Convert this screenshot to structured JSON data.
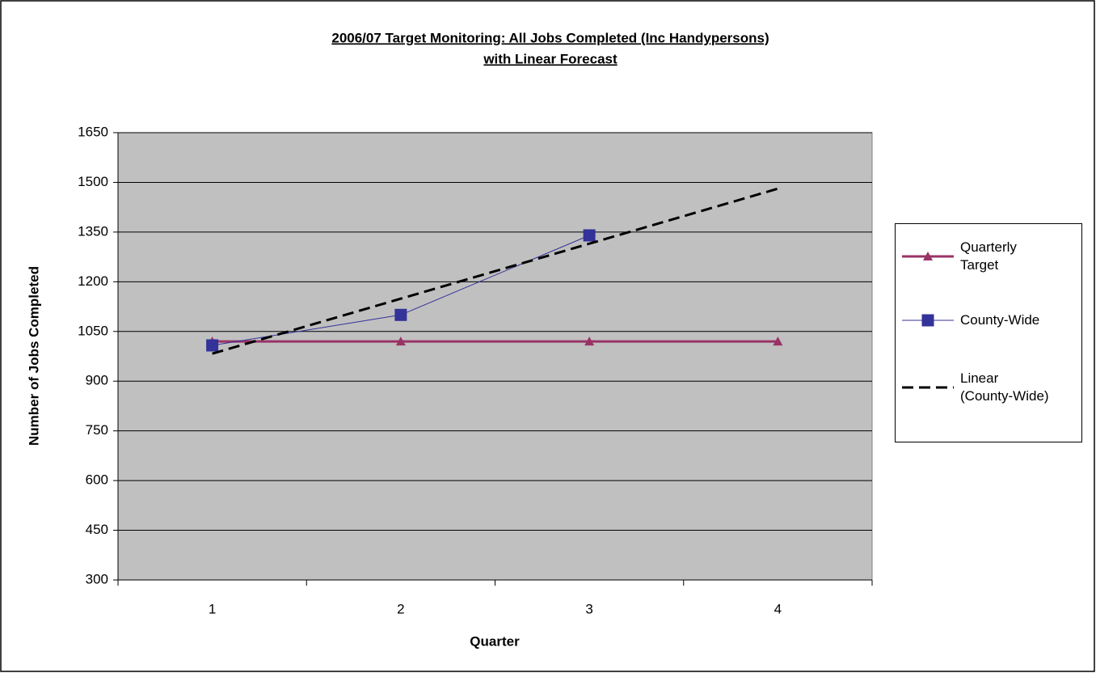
{
  "chart_data": {
    "type": "line",
    "title": [
      "2006/07 Target Monitoring: All Jobs Completed (Inc Handypersons)",
      "with Linear Forecast"
    ],
    "x_label": "Quarter",
    "y_label": "Number of Jobs Completed",
    "categories": [
      "1",
      "2",
      "3",
      "4"
    ],
    "series": [
      {
        "name": "Quarterly Target",
        "color": "#993366",
        "marker": "triangle",
        "width": 3,
        "values": [
          1020,
          1020,
          1020,
          1020
        ]
      },
      {
        "name": "County-Wide",
        "color": "#333399",
        "marker": "square",
        "width": 1,
        "values": [
          1008,
          1100,
          1340,
          null
        ]
      },
      {
        "name": "Linear (County-Wide)",
        "color": "#000000",
        "marker": "none",
        "width": 3,
        "dash": true,
        "values": [
          983,
          1149,
          1315,
          1481
        ]
      }
    ],
    "ylim": [
      300,
      1650
    ],
    "yticks": [
      300,
      450,
      600,
      750,
      900,
      1050,
      1200,
      1350,
      1500,
      1650
    ],
    "grid": true,
    "legend": "right",
    "plot_background": "#c0c0c0"
  }
}
